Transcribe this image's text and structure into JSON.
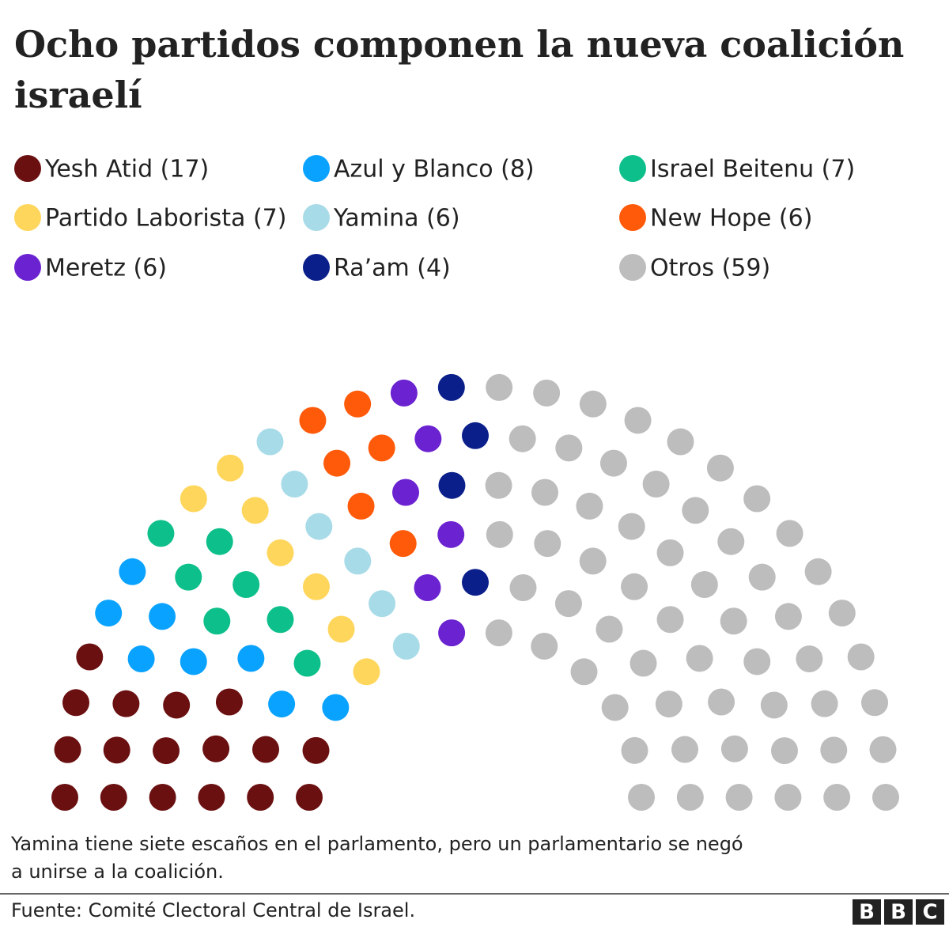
{
  "chart_data": {
    "type": "parliament",
    "title": [
      "Ocho partidos componen la nueva coalición",
      "israelí"
    ],
    "categories": [
      "Yesh Atid (17)",
      "Azul y Blanco (8)",
      "Israel Beitenu (7)",
      "Partido Laborista (7)",
      "Yamina (6)",
      "New Hope (6)",
      "Meretz (6)",
      "Ra’am (4)",
      "Otros (59)"
    ],
    "values": [
      17,
      8,
      7,
      7,
      6,
      6,
      6,
      4,
      59
    ],
    "colors": [
      "#6b1011",
      "#0aa2ff",
      "#0dbf8a",
      "#ffd65c",
      "#a8dbe8",
      "#ff5a0a",
      "#6b22d0",
      "#0a1f8a",
      "#bdbdbd"
    ],
    "note": [
      "Yamina tiene siete escaños en el parlamento, pero un parlamentario se negó",
      "a unirse a la coalición."
    ],
    "source": "Fuente: Comité Clectoral Central de Israel.",
    "logo": [
      "B",
      "B",
      "C"
    ]
  }
}
